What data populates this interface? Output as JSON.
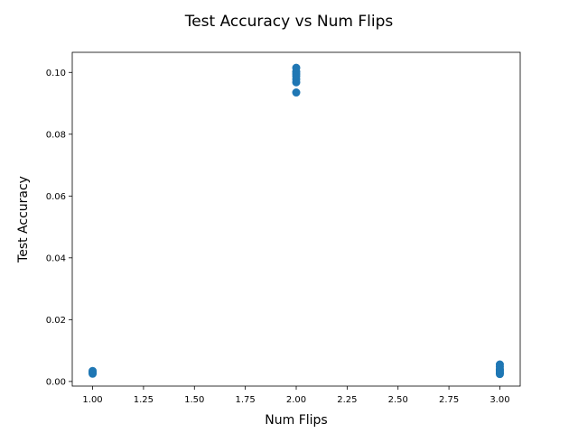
{
  "chart_data": {
    "type": "scatter",
    "title": "Test Accuracy vs Num Flips",
    "xlabel": "Num Flips",
    "ylabel": "Test Accuracy",
    "xlim": [
      0.9,
      3.1
    ],
    "ylim": [
      -0.0015,
      0.1065
    ],
    "xticks": [
      "1.00",
      "1.25",
      "1.50",
      "1.75",
      "2.00",
      "2.25",
      "2.50",
      "2.75",
      "3.00"
    ],
    "yticks": [
      "0.00",
      "0.02",
      "0.04",
      "0.06",
      "0.08",
      "0.10"
    ],
    "grid": false,
    "marker_color": "#1f77b4",
    "points": [
      {
        "x": 1.0,
        "y": 0.0025
      },
      {
        "x": 1.0,
        "y": 0.0028
      },
      {
        "x": 1.0,
        "y": 0.003
      },
      {
        "x": 1.0,
        "y": 0.0032
      },
      {
        "x": 1.0,
        "y": 0.0034
      },
      {
        "x": 2.0,
        "y": 0.0935
      },
      {
        "x": 2.0,
        "y": 0.0968
      },
      {
        "x": 2.0,
        "y": 0.0978
      },
      {
        "x": 2.0,
        "y": 0.0988
      },
      {
        "x": 2.0,
        "y": 0.0995
      },
      {
        "x": 2.0,
        "y": 0.1002
      },
      {
        "x": 2.0,
        "y": 0.1015
      },
      {
        "x": 3.0,
        "y": 0.0024
      },
      {
        "x": 3.0,
        "y": 0.0028
      },
      {
        "x": 3.0,
        "y": 0.0032
      },
      {
        "x": 3.0,
        "y": 0.0036
      },
      {
        "x": 3.0,
        "y": 0.004
      },
      {
        "x": 3.0,
        "y": 0.0048
      },
      {
        "x": 3.0,
        "y": 0.0055
      }
    ]
  }
}
